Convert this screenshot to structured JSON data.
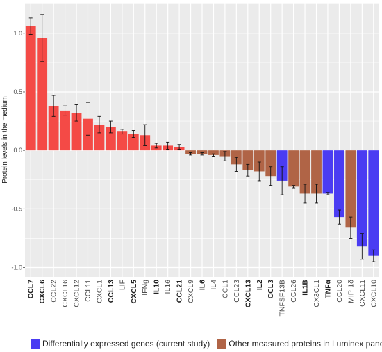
{
  "chart_data": {
    "type": "bar",
    "ylabel": "Protein levels in the medium",
    "xlabel": "",
    "title": "",
    "ylim": [
      -1.08,
      1.26
    ],
    "yticks": [
      1.0,
      0.5,
      0.0,
      -0.5,
      -1.0
    ],
    "ytick_labels": [
      "1.0",
      "0.5",
      "0.0",
      "-0.5",
      "-1.0"
    ],
    "grid": true,
    "legend_position": "bottom",
    "colors": {
      "differential": "#4a3cf2",
      "other_positive": "#f44a46",
      "other_negative": "#b06446",
      "panel_bg": "#ebebeb",
      "grid": "#ffffff"
    },
    "categories": [
      "CCL7",
      "CXCL6",
      "CCL22",
      "CXCL16",
      "CXCL12",
      "CCL11",
      "CXCL1",
      "CCL13",
      "LIF",
      "CXCL5",
      "IFNg",
      "IL10",
      "IL16",
      "CCL21",
      "CXCL9",
      "IL6",
      "IL4",
      "CCL1",
      "CCL23",
      "CXCL13",
      "IL2",
      "CCL3",
      "TNFSF13B",
      "CCL26",
      "IL1B",
      "CX3CL1",
      "TNFα",
      "CCL20",
      "MIP-1δ",
      "CXCL11",
      "CXCL10"
    ],
    "bold_categories": [
      "CCL7",
      "CXCL6",
      "CCL13",
      "CXCL5",
      "IL10",
      "CCL21",
      "IL6",
      "CXCL13",
      "IL2",
      "CCL3",
      "IL1B",
      "TNFα"
    ],
    "values": [
      1.06,
      0.96,
      0.38,
      0.34,
      0.32,
      0.27,
      0.22,
      0.2,
      0.16,
      0.14,
      0.13,
      0.04,
      0.04,
      0.03,
      -0.03,
      -0.03,
      -0.04,
      -0.05,
      -0.12,
      -0.17,
      -0.18,
      -0.22,
      -0.26,
      -0.31,
      -0.37,
      -0.37,
      -0.37,
      -0.57,
      -0.66,
      -0.82,
      -0.9
    ],
    "errors": [
      0.07,
      0.2,
      0.09,
      0.04,
      0.07,
      0.14,
      0.07,
      0.05,
      0.02,
      0.03,
      0.09,
      0.02,
      0.03,
      0.02,
      0.01,
      0.01,
      0.01,
      0.04,
      0.06,
      0.05,
      0.08,
      0.08,
      0.12,
      0.01,
      0.08,
      0.08,
      0.01,
      0.06,
      0.09,
      0.11,
      0.05
    ],
    "groups": [
      "other",
      "other",
      "other",
      "other",
      "other",
      "other",
      "other",
      "other",
      "other",
      "other",
      "other",
      "other",
      "other",
      "other",
      "other",
      "other",
      "other",
      "other",
      "other",
      "other",
      "other",
      "other",
      "differential",
      "other",
      "other",
      "other",
      "differential",
      "differential",
      "other",
      "differential",
      "differential"
    ],
    "series": [
      {
        "name": "Differentially expressed genes (current study)",
        "key": "differential"
      },
      {
        "name": "Other measured proteins in Luminex panel",
        "key": "other"
      }
    ]
  }
}
